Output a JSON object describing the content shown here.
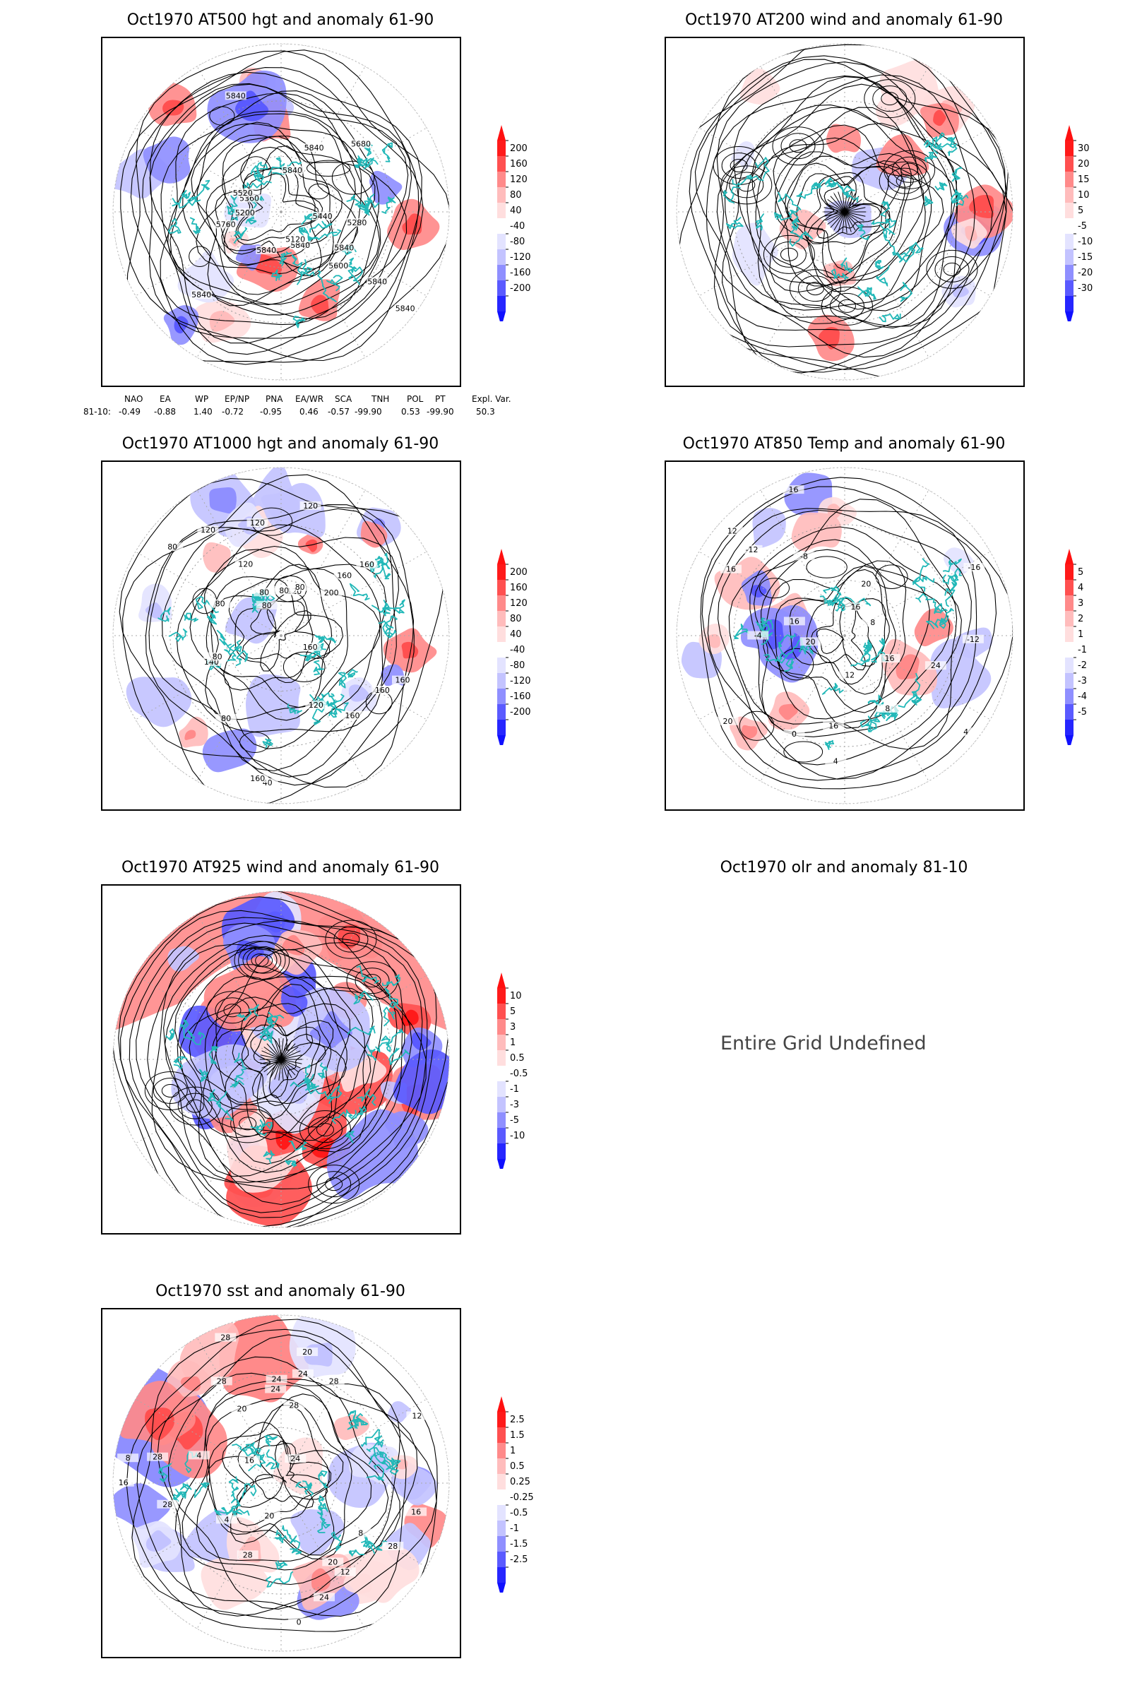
{
  "panels": [
    {
      "id": "p500",
      "title": "Oct1970 AT500 hgt and anomaly 61-90",
      "kind": "height",
      "colorbar": {
        "labels": [
          "200",
          "160",
          "120",
          "80",
          "40",
          "-40",
          "-80",
          "-120",
          "-160",
          "-200"
        ]
      },
      "contour_labels": [
        "5840",
        "5840",
        "5840",
        "5840",
        "5840",
        "5840",
        "5120",
        "5200",
        "5280",
        "5360",
        "5440",
        "5520",
        "5600",
        "5680",
        "5760",
        "5840",
        "5840",
        "5840"
      ]
    },
    {
      "id": "p200",
      "title": "Oct1970 AT200 wind and anomaly 61-90",
      "kind": "wind",
      "colorbar": {
        "labels": [
          "30",
          "20",
          "15",
          "10",
          "5",
          "-5",
          "-10",
          "-15",
          "-20",
          "-30"
        ]
      },
      "contour_labels": []
    },
    {
      "id": "p1000",
      "title": "Oct1970 AT1000 hgt and anomaly 61-90",
      "kind": "height",
      "colorbar": {
        "labels": [
          "200",
          "160",
          "120",
          "80",
          "40",
          "-40",
          "-80",
          "-120",
          "-160",
          "-200"
        ]
      },
      "contour_labels": [
        "80",
        "120",
        "200",
        "160",
        "160",
        "40",
        "80",
        "80",
        "120",
        "120",
        "160",
        "140",
        "160",
        "120",
        "80",
        "160",
        "80",
        "120",
        "160",
        "120",
        "80",
        "80",
        "80",
        "160"
      ]
    },
    {
      "id": "p850",
      "title": "Oct1970 AT850 Temp and anomaly 61-90",
      "kind": "temp",
      "colorbar": {
        "labels": [
          "5",
          "4",
          "3",
          "2",
          "1",
          "-1",
          "-2",
          "-3",
          "-4",
          "-5"
        ]
      },
      "contour_labels": [
        "16",
        "12",
        "8",
        "16",
        "4",
        "-12",
        "-12",
        "-16",
        "-8",
        "-4",
        "0",
        "4",
        "8",
        "12",
        "16",
        "20",
        "24",
        "20",
        "20",
        "16",
        "16",
        "16"
      ]
    },
    {
      "id": "p925",
      "title": "Oct1970 AT925 wind and anomaly 61-90",
      "kind": "wind925",
      "colorbar": {
        "labels": [
          "10",
          "5",
          "3",
          "1",
          "0.5",
          "-0.5",
          "-1",
          "-3",
          "-5",
          "-10"
        ]
      },
      "contour_labels": []
    },
    {
      "id": "polr",
      "title": "Oct1970 olr and anomaly 81-10",
      "kind": "undefined",
      "message": "Entire Grid Undefined"
    },
    {
      "id": "psst",
      "title": "Oct1970 sst and anomaly 61-90",
      "kind": "sst",
      "colorbar": {
        "labels": [
          "2.5",
          "1.5",
          "1",
          "0.5",
          "0.25",
          "-0.25",
          "-0.5",
          "-1",
          "-1.5",
          "-2.5"
        ]
      },
      "contour_labels": [
        "28",
        "28",
        "28",
        "24",
        "24",
        "24",
        "20",
        "20",
        "16",
        "16",
        "12",
        "8",
        "4",
        "0",
        "28",
        "4",
        "8",
        "12",
        "16",
        "20",
        "20",
        "24",
        "24",
        "28",
        "28",
        "28",
        "28"
      ]
    }
  ],
  "index_table": {
    "headers": [
      "NAO",
      "EA",
      "WP",
      "EP/NP",
      "PNA",
      "EA/WR",
      "SCA",
      "TNH",
      "POL",
      "PT",
      "Expl. Var."
    ],
    "row_label": "81-10:",
    "values": [
      "-0.49",
      "-0.88",
      "1.40",
      "-0.72",
      "-0.95",
      "0.46",
      "-0.57",
      "-99.90",
      "0.53",
      "-99.90",
      "50.3"
    ]
  },
  "colors": {
    "coast": "#22b8b8",
    "pos": [
      "#ff1a1a",
      "#ff5050",
      "#ff8a8a",
      "#ffbcbc",
      "#ffdede"
    ],
    "neg": [
      "#e3e3ff",
      "#c3c3ff",
      "#8f8fff",
      "#5a5aff",
      "#2626ff"
    ]
  }
}
